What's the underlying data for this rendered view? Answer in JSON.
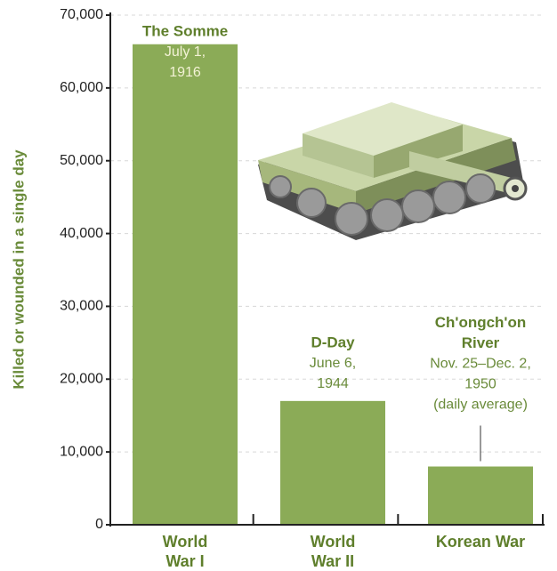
{
  "chart_data": {
    "type": "bar",
    "ylabel": "Killed or wounded in a single day",
    "categories": [
      "World War I",
      "World War II",
      "Korean War"
    ],
    "values": [
      66000,
      17000,
      8000
    ],
    "color": "#8bab57",
    "ylim": [
      0,
      70000
    ],
    "yticks": [
      0,
      {
        "value": 10000,
        "label": "10,000"
      },
      {
        "value": 20000,
        "label": "20,000"
      },
      {
        "value": 30000,
        "label": "30,000"
      },
      {
        "value": 40000,
        "label": "40,000"
      },
      {
        "value": 50000,
        "label": "50,000"
      },
      {
        "value": 60000,
        "label": "60,000"
      },
      {
        "value": 70000,
        "label": "70,000"
      }
    ],
    "grid": true,
    "annotations": [
      {
        "title": [
          "The Somme"
        ],
        "text": [
          "July 1,",
          "1916"
        ]
      },
      {
        "title": [
          "D-Day"
        ],
        "text": [
          "June 6,",
          "1944"
        ]
      },
      {
        "title": [
          "Ch'ongch'on",
          "River"
        ],
        "text": [
          "Nov. 25–Dec. 2,",
          "1950",
          "(daily average)"
        ]
      }
    ]
  }
}
